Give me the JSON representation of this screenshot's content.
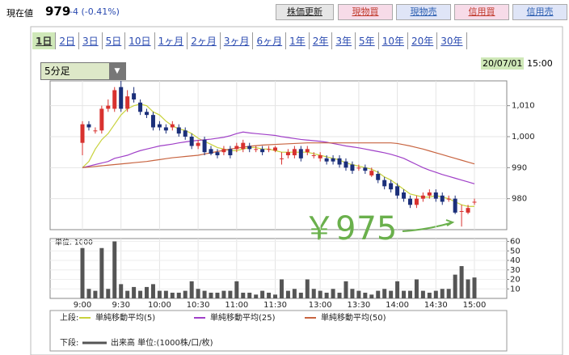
{
  "header": {
    "label": "現在値",
    "price": "979",
    "change": "-4 (-0.41%)"
  },
  "buttons": [
    {
      "label": "株価更新",
      "color": "#222222",
      "background": "#e6e6e6"
    },
    {
      "label": "現物買",
      "color": "#c0392b",
      "background": "#f7dbe8"
    },
    {
      "label": "現物売",
      "color": "#2a5db0",
      "background": "#dfe5f7"
    },
    {
      "label": "信用買",
      "color": "#c0392b",
      "background": "#f7dbe8"
    },
    {
      "label": "信用売",
      "color": "#2a5db0",
      "background": "#dfe5f7"
    }
  ],
  "tabs": [
    {
      "label": "1日",
      "selected": true
    },
    {
      "label": "2日"
    },
    {
      "label": "3日"
    },
    {
      "label": "5日"
    },
    {
      "label": "10日"
    },
    {
      "label": "1ヶ月"
    },
    {
      "label": "2ヶ月"
    },
    {
      "label": "3ヶ月"
    },
    {
      "label": "6ヶ月"
    },
    {
      "label": "1年"
    },
    {
      "label": "2年"
    },
    {
      "label": "3年"
    },
    {
      "label": "5年"
    },
    {
      "label": "10年"
    },
    {
      "label": "20年"
    },
    {
      "label": "30年"
    }
  ],
  "interval": "5分足",
  "timestamp": {
    "date": "20/07/01",
    "time": "15:00"
  },
  "legend": {
    "upper": "上段:",
    "lower": "下段:"
  },
  "chart_data": [
    {
      "type": "candlestick",
      "annotation": "￥975",
      "up_color": "#d8322f",
      "down_color": "#1b2f7a",
      "grid": true,
      "ylim": [
        970,
        1018
      ],
      "yticks": [
        980,
        990,
        {
          "value": 1000,
          "label": "1,000"
        },
        {
          "value": 1010,
          "label": "1,010"
        }
      ],
      "open": [
        998,
        1004,
        1002,
        1002,
        1009,
        1009,
        1016,
        1009,
        1014,
        1011,
        1008,
        1007,
        1004,
        1003,
        1003,
        1003,
        1002,
        1000,
        997,
        999,
        996,
        995,
        995,
        996,
        996,
        996,
        997,
        996,
        996,
        996,
        995.5,
        993,
        994,
        994,
        996,
        995,
        994,
        993,
        993,
        993,
        993,
        992,
        991,
        990,
        990,
        987.5,
        988,
        986,
        985,
        984,
        982,
        980,
        978,
        980,
        981,
        982,
        981,
        980,
        980,
        976,
        975.5,
        979
      ],
      "high": [
        1005,
        1005,
        1003,
        1010,
        1012,
        1016,
        1018,
        1015,
        1016,
        1012,
        1009,
        1008,
        1005,
        1004,
        1005,
        1004,
        1003,
        1001,
        999,
        1000,
        997,
        996,
        997,
        997,
        998,
        999,
        998,
        997,
        997,
        997,
        997,
        995,
        996,
        997,
        997,
        997,
        995,
        995,
        994,
        994,
        994,
        993,
        992,
        991,
        991,
        990,
        989,
        987,
        986,
        985,
        983,
        981,
        981,
        982,
        983,
        983,
        982,
        981,
        981,
        978,
        978,
        980
      ],
      "low": [
        994,
        1002,
        1001,
        1001,
        1008,
        1008,
        1008,
        1008,
        1011,
        1007,
        1006,
        1002,
        1002,
        1001,
        1002,
        1000,
        999,
        996,
        996,
        994,
        994,
        993,
        994,
        993,
        995,
        995,
        995,
        995,
        994,
        995,
        995,
        991,
        993,
        993,
        992,
        994,
        993,
        992,
        991,
        991,
        990,
        989,
        988,
        989,
        988,
        987,
        985,
        983,
        982,
        980,
        979,
        977,
        977,
        979,
        980,
        979,
        978,
        979,
        975,
        971,
        975,
        978
      ],
      "close": [
        1004,
        1003,
        1002,
        1009,
        1010,
        1015,
        1009,
        1013,
        1012,
        1008,
        1007,
        1003,
        1003,
        1002,
        1004,
        1001,
        1000,
        997,
        998,
        995,
        994.5,
        994,
        996,
        994,
        997,
        998,
        996,
        996,
        995,
        996,
        996.5,
        993,
        995,
        996,
        993,
        996,
        994,
        994,
        992,
        992,
        991,
        990,
        989,
        990,
        989,
        989,
        986,
        984,
        983,
        981,
        980,
        978,
        980,
        981,
        982,
        980,
        979,
        980,
        975.5,
        976,
        977,
        979
      ],
      "series": [
        {
          "name": "単純移動平均(5)",
          "color": "#c8d23c",
          "values": [
            990,
            992,
            996,
            999,
            1001,
            1004,
            1007,
            1009,
            1010,
            1010.5,
            1010,
            1008,
            1007,
            1005,
            1003.5,
            1002.5,
            1002,
            1001,
            999.5,
            998.5,
            997.5,
            996.5,
            996,
            995.5,
            995.5,
            996,
            996.5,
            996.5,
            996,
            996,
            995.5,
            995,
            995,
            995,
            995,
            995,
            994.5,
            994,
            993.5,
            993,
            992.5,
            991.5,
            991,
            990.5,
            990,
            989.5,
            988.5,
            987,
            986,
            984.5,
            983,
            981.5,
            981,
            980.5,
            980.5,
            981,
            980.5,
            980,
            979,
            978,
            977.5,
            977.5
          ]
        },
        {
          "name": "単純移動平均(25)",
          "color": "#a040c8",
          "values": [
            990,
            990.5,
            991,
            991.5,
            992,
            993,
            993.5,
            994,
            994.8,
            995.5,
            996,
            996.5,
            997,
            997.3,
            997.6,
            998,
            998.3,
            998.6,
            998.8,
            999,
            999.2,
            999.5,
            999.8,
            1000.3,
            1001,
            1001.5,
            1001.2,
            1001,
            1000.8,
            1000.6,
            1000.4,
            1000,
            999.7,
            999.4,
            999.1,
            998.9,
            998.7,
            998.5,
            998.2,
            997.8,
            997.4,
            997,
            996.7,
            996.4,
            996,
            995.6,
            995.2,
            994.8,
            994.3,
            993.7,
            993,
            992,
            991,
            990,
            989.2,
            988.5,
            987.8,
            987.2,
            986.6,
            986,
            985.4,
            984.8
          ]
        },
        {
          "name": "単純移動平均(50)",
          "color": "#c86440",
          "values": [
            990,
            990.2,
            990.4,
            990.6,
            990.8,
            991,
            991.2,
            991.4,
            991.6,
            991.8,
            992,
            992.3,
            992.6,
            992.9,
            993.2,
            993.4,
            993.6,
            993.8,
            994,
            994.4,
            994.8,
            995.2,
            995.6,
            996,
            996.3,
            996.6,
            996.9,
            997.1,
            997.3,
            997.4,
            997.5,
            997.6,
            997.7,
            997.8,
            997.9,
            998,
            998,
            998,
            998,
            998,
            998,
            998,
            998,
            998,
            998,
            998,
            998,
            998,
            998,
            997.8,
            997.4,
            997,
            996.5,
            996,
            995.4,
            994.8,
            994.2,
            993.6,
            993,
            992.4,
            991.8,
            991.2
          ]
        }
      ]
    },
    {
      "type": "bar",
      "label": "単位: 1000",
      "name": "出来高 単位:(1000株/口/枚)",
      "color": "#555555",
      "grid": true,
      "ylim": [
        0,
        63
      ],
      "yticks": [
        10,
        20,
        30,
        40,
        50,
        60
      ],
      "categories": [
        "9:00",
        null,
        null,
        null,
        null,
        null,
        "9:30",
        null,
        null,
        null,
        null,
        null,
        "10:00",
        null,
        null,
        null,
        null,
        null,
        "10:30",
        null,
        null,
        null,
        null,
        null,
        "11:00",
        null,
        null,
        null,
        null,
        null,
        "11:30",
        null,
        null,
        null,
        null,
        null,
        null,
        "13:00",
        null,
        null,
        null,
        null,
        null,
        "13:30",
        null,
        null,
        null,
        null,
        null,
        "14:00",
        null,
        null,
        null,
        null,
        null,
        "14:30",
        null,
        null,
        null,
        null,
        null,
        "15:00"
      ],
      "values": [
        53,
        10,
        8,
        53,
        10,
        60,
        15,
        8,
        12,
        8,
        12,
        15,
        8,
        8,
        6,
        6,
        8,
        18,
        10,
        8,
        6,
        6,
        8,
        8,
        18,
        6,
        6,
        4,
        8,
        6,
        4,
        20,
        8,
        10,
        6,
        20,
        10,
        8,
        6,
        10,
        6,
        18,
        10,
        8,
        6,
        4,
        8,
        10,
        8,
        18,
        8,
        8,
        20,
        8,
        6,
        8,
        10,
        10,
        25,
        34,
        20,
        22
      ]
    }
  ]
}
